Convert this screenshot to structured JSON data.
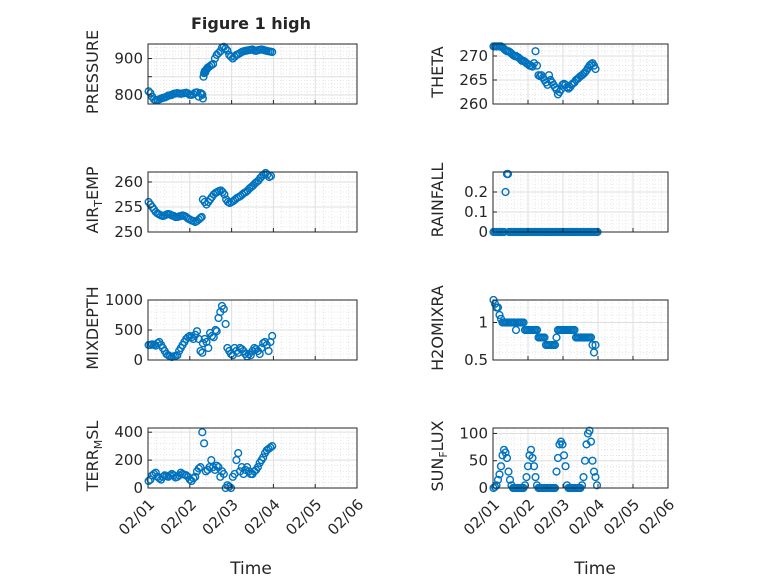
{
  "figure": {
    "title": "Figure 1 high",
    "marker_color": "#0072BD",
    "x_ticks": [
      "02/01",
      "02/02",
      "02/03",
      "02/04",
      "02/05",
      "02/06"
    ],
    "x_label": "Time"
  },
  "chart_data": [
    {
      "type": "scatter",
      "title": "Figure 1 high",
      "ylabel": "PRESSURE",
      "ylim": [
        775,
        940
      ],
      "yticks": [
        800,
        850,
        900
      ],
      "yticklabels": [
        "800",
        "",
        "900"
      ],
      "xlim": [
        0,
        7
      ],
      "grid": true,
      "x": [
        0.02,
        0.08,
        0.14,
        0.2,
        0.26,
        0.32,
        0.38,
        0.44,
        0.5,
        0.56,
        0.62,
        0.68,
        0.74,
        0.8,
        0.86,
        0.92,
        0.98,
        1.04,
        1.1,
        1.16,
        1.22,
        1.28,
        1.34,
        1.4,
        1.46,
        1.52,
        1.58,
        1.64,
        1.7,
        1.76,
        1.8,
        1.82,
        1.84,
        1.86,
        1.88,
        1.9,
        1.92,
        1.94,
        1.96,
        1.98,
        2.0,
        2.06,
        2.12,
        2.18,
        2.24,
        2.3,
        2.36,
        2.42,
        2.48,
        2.54,
        2.6,
        2.66,
        2.72,
        2.78,
        2.84,
        2.9,
        2.96,
        3.02,
        3.08,
        3.14,
        3.2,
        3.26,
        3.32,
        3.38,
        3.44,
        3.5,
        3.56,
        3.62,
        3.68,
        3.74,
        3.8,
        3.86,
        3.92,
        3.98,
        4.04,
        4.1,
        4.16
      ],
      "y": [
        810,
        805,
        795,
        788,
        785,
        786,
        788,
        790,
        792,
        793,
        795,
        798,
        799,
        800,
        803,
        804,
        805,
        804,
        803,
        804,
        805,
        806,
        804,
        800,
        800,
        802,
        806,
        807,
        795,
        805,
        803,
        800,
        790,
        850,
        860,
        865,
        862,
        868,
        870,
        872,
        875,
        878,
        882,
        885,
        900,
        910,
        915,
        920,
        930,
        932,
        928,
        922,
        910,
        905,
        900,
        905,
        910,
        912,
        915,
        918,
        920,
        921,
        922,
        923,
        924,
        925,
        922,
        921,
        923,
        924,
        925,
        924,
        922,
        921,
        920,
        919,
        918
      ]
    },
    {
      "type": "scatter",
      "ylabel": "THETA",
      "ylim": [
        260,
        272.5
      ],
      "yticks": [
        260,
        265,
        270
      ],
      "yticklabels": [
        "260",
        "265",
        "270"
      ],
      "xlim": [
        0,
        7
      ],
      "grid": true,
      "x": [
        0.02,
        0.08,
        0.14,
        0.2,
        0.26,
        0.32,
        0.38,
        0.44,
        0.5,
        0.56,
        0.62,
        0.68,
        0.74,
        0.8,
        0.86,
        0.92,
        0.98,
        1.04,
        1.1,
        1.16,
        1.22,
        1.28,
        1.34,
        1.4,
        1.46,
        1.52,
        1.58,
        1.64,
        1.7,
        1.76,
        1.82,
        1.88,
        1.94,
        2.0,
        2.06,
        2.12,
        2.18,
        2.24,
        2.3,
        2.36,
        2.42,
        2.48,
        2.54,
        2.6,
        2.66,
        2.72,
        2.78,
        2.84,
        2.9,
        2.96,
        3.02,
        3.08,
        3.14,
        3.2,
        3.26,
        3.32,
        3.38,
        3.44,
        3.5,
        3.56,
        3.62,
        3.68,
        3.74,
        3.8,
        3.86,
        3.92,
        3.98,
        4.04,
        4.1
      ],
      "y": [
        272,
        272,
        272,
        272,
        272,
        272,
        271.8,
        271.5,
        271.2,
        271,
        271,
        270.8,
        270.5,
        270.2,
        270,
        270,
        269.8,
        269.6,
        269.3,
        269,
        269,
        268.8,
        268.5,
        268.3,
        268,
        268,
        267.8,
        268.5,
        271,
        268,
        266,
        265.8,
        266,
        265.5,
        265,
        264.5,
        264,
        266,
        265,
        264.5,
        264,
        263.5,
        263,
        262,
        262.5,
        263,
        264,
        264.2,
        264,
        263.5,
        263.2,
        263.5,
        264,
        264.3,
        264.5,
        265,
        265.2,
        265.5,
        265.8,
        266,
        266.3,
        266.6,
        267,
        267.5,
        268,
        268.3,
        268.5,
        268,
        267.3
      ]
    },
    {
      "type": "scatter",
      "ylabel": "AIR_TEMP",
      "ylim": [
        250,
        262
      ],
      "yticks": [
        250,
        255,
        260
      ],
      "yticklabels": [
        "250",
        "255",
        "260"
      ],
      "xlim": [
        0,
        7
      ],
      "grid": true,
      "x": [
        0.02,
        0.08,
        0.14,
        0.2,
        0.26,
        0.32,
        0.38,
        0.44,
        0.5,
        0.56,
        0.62,
        0.68,
        0.74,
        0.8,
        0.86,
        0.92,
        0.98,
        1.04,
        1.1,
        1.16,
        1.22,
        1.28,
        1.34,
        1.4,
        1.46,
        1.52,
        1.58,
        1.64,
        1.7,
        1.76,
        1.8,
        1.84,
        1.9,
        1.96,
        2.02,
        2.08,
        2.14,
        2.2,
        2.26,
        2.32,
        2.38,
        2.44,
        2.5,
        2.56,
        2.62,
        2.68,
        2.74,
        2.8,
        2.86,
        2.92,
        2.98,
        3.04,
        3.1,
        3.16,
        3.22,
        3.28,
        3.34,
        3.4,
        3.46,
        3.52,
        3.58,
        3.64,
        3.7,
        3.76,
        3.82,
        3.88,
        3.94,
        4.0,
        4.06,
        4.12
      ],
      "y": [
        256,
        255.5,
        255,
        254.5,
        254,
        253.7,
        253.5,
        253.3,
        253.2,
        253.3,
        253.5,
        253.6,
        253.5,
        253.3,
        253.2,
        253,
        253,
        253.1,
        253.2,
        253.3,
        253.2,
        253,
        252.7,
        252.5,
        252.3,
        252.2,
        252,
        252.2,
        252.5,
        252.8,
        253,
        256.5,
        256,
        255.5,
        256,
        256.5,
        257,
        257.5,
        257.8,
        258,
        258.2,
        258.3,
        258,
        257.5,
        256.5,
        256,
        255.8,
        256,
        256.2,
        256.5,
        256.8,
        257,
        257.2,
        257.5,
        257.8,
        258,
        258.3,
        258.7,
        259,
        259.3,
        259.7,
        260,
        260.3,
        260.8,
        261.2,
        261.5,
        261.8,
        261.5,
        261,
        261.2
      ]
    },
    {
      "type": "scatter",
      "ylabel": "RAINFALL",
      "ylim": [
        0,
        0.3
      ],
      "yticks": [
        0,
        0.1,
        0.2
      ],
      "yticklabels": [
        "0",
        "0.1",
        "0.2"
      ],
      "xlim": [
        0,
        7
      ],
      "grid": true,
      "x": [
        0.02,
        0.08,
        0.14,
        0.2,
        0.26,
        0.32,
        0.38,
        0.44,
        0.5,
        0.56,
        0.6,
        0.64,
        0.7,
        0.76,
        0.82,
        0.88,
        0.94,
        1.0,
        1.06,
        1.12,
        1.18,
        1.24,
        1.3,
        1.36,
        1.42,
        1.48,
        1.54,
        1.6,
        1.66,
        1.72,
        1.78,
        1.84,
        1.9,
        1.96,
        2.02,
        2.08,
        2.14,
        2.2,
        2.26,
        2.32,
        2.38,
        2.44,
        2.5,
        2.56,
        2.62,
        2.68,
        2.74,
        2.8,
        2.86,
        2.92,
        2.98,
        3.04,
        3.1,
        3.16,
        3.22,
        3.28,
        3.34,
        3.4,
        3.46,
        3.52,
        3.58,
        3.64,
        3.7,
        3.76,
        3.82,
        3.88,
        3.94,
        4.0,
        4.06,
        4.12,
        4.18
      ],
      "y": [
        0,
        0,
        0,
        0,
        0,
        0,
        0,
        0,
        0.2,
        0.29,
        0.29,
        0,
        0,
        0,
        0,
        0,
        0,
        0,
        0,
        0,
        0,
        0,
        0,
        0,
        0,
        0,
        0,
        0,
        0,
        0,
        0,
        0,
        0,
        0,
        0,
        0,
        0,
        0,
        0,
        0,
        0,
        0,
        0,
        0,
        0,
        0,
        0,
        0,
        0,
        0,
        0,
        0,
        0,
        0,
        0,
        0,
        0,
        0,
        0,
        0,
        0,
        0,
        0,
        0,
        0,
        0,
        0,
        0,
        0,
        0,
        0
      ]
    },
    {
      "type": "scatter",
      "ylabel": "MIXDEPTH",
      "ylim": [
        0,
        1000
      ],
      "yticks": [
        0,
        500,
        1000
      ],
      "yticklabels": [
        "0",
        "500",
        "1000"
      ],
      "xlim": [
        0,
        7
      ],
      "grid": true,
      "x": [
        0.02,
        0.08,
        0.14,
        0.2,
        0.26,
        0.32,
        0.38,
        0.44,
        0.5,
        0.56,
        0.62,
        0.68,
        0.74,
        0.8,
        0.86,
        0.92,
        0.98,
        1.04,
        1.1,
        1.16,
        1.22,
        1.28,
        1.34,
        1.4,
        1.46,
        1.52,
        1.58,
        1.64,
        1.7,
        1.76,
        1.82,
        1.84,
        1.9,
        1.96,
        2.02,
        2.08,
        2.14,
        2.2,
        2.26,
        2.3,
        2.36,
        2.42,
        2.48,
        2.54,
        2.6,
        2.66,
        2.72,
        2.78,
        2.84,
        2.9,
        2.96,
        3.02,
        3.08,
        3.14,
        3.2,
        3.26,
        3.32,
        3.38,
        3.44,
        3.5,
        3.56,
        3.62,
        3.68,
        3.74,
        3.8,
        3.86,
        3.92,
        3.98,
        4.04,
        4.1,
        4.16
      ],
      "y": [
        250,
        250,
        260,
        250,
        240,
        280,
        300,
        250,
        200,
        150,
        100,
        80,
        60,
        50,
        60,
        70,
        80,
        150,
        200,
        250,
        300,
        350,
        380,
        400,
        380,
        350,
        420,
        480,
        350,
        150,
        120,
        280,
        350,
        300,
        200,
        450,
        400,
        380,
        500,
        480,
        700,
        800,
        900,
        850,
        600,
        200,
        150,
        100,
        80,
        200,
        150,
        120,
        200,
        180,
        150,
        100,
        60,
        100,
        80,
        150,
        200,
        180,
        150,
        100,
        200,
        280,
        300,
        250,
        150,
        300,
        400
      ]
    },
    {
      "type": "scatter",
      "ylabel": "H2OMIXRA",
      "ylim": [
        0.5,
        1.3
      ],
      "yticks": [
        0.5,
        1
      ],
      "yticklabels": [
        "0.5",
        "1"
      ],
      "xlim": [
        0,
        7
      ],
      "grid": true,
      "x": [
        0.02,
        0.08,
        0.14,
        0.2,
        0.26,
        0.32,
        0.38,
        0.44,
        0.5,
        0.56,
        0.62,
        0.68,
        0.74,
        0.8,
        0.86,
        0.92,
        0.98,
        1.04,
        1.1,
        1.16,
        1.22,
        1.28,
        1.34,
        1.4,
        1.46,
        1.52,
        1.58,
        1.64,
        1.7,
        1.76,
        1.82,
        1.88,
        1.94,
        2.0,
        2.06,
        2.12,
        2.18,
        2.24,
        2.3,
        2.36,
        2.42,
        2.48,
        2.54,
        2.6,
        2.66,
        2.72,
        2.78,
        2.84,
        2.9,
        2.96,
        3.02,
        3.08,
        3.14,
        3.2,
        3.26,
        3.32,
        3.38,
        3.44,
        3.5,
        3.56,
        3.62,
        3.68,
        3.74,
        3.8,
        3.86,
        3.92,
        3.98,
        4.04,
        4.1
      ],
      "y": [
        1.3,
        1.25,
        1.2,
        1.2,
        1.1,
        1.05,
        1.0,
        1.0,
        1.0,
        1.0,
        1.0,
        1.0,
        1.0,
        1.0,
        1.0,
        0.9,
        1.0,
        1.0,
        1.0,
        1.0,
        1.0,
        0.9,
        0.9,
        0.9,
        0.9,
        0.9,
        0.9,
        0.9,
        0.9,
        0.9,
        0.8,
        0.8,
        0.8,
        0.8,
        0.8,
        0.7,
        0.7,
        0.7,
        0.7,
        0.7,
        0.7,
        0.7,
        0.8,
        0.9,
        0.9,
        0.9,
        0.9,
        0.9,
        0.9,
        0.9,
        0.9,
        0.9,
        0.9,
        0.9,
        0.9,
        0.8,
        0.8,
        0.8,
        0.8,
        0.8,
        0.8,
        0.8,
        0.8,
        0.8,
        0.8,
        0.8,
        0.7,
        0.6,
        0.7
      ]
    },
    {
      "type": "scatter",
      "ylabel": "TERR_MSL",
      "ylim": [
        0,
        430
      ],
      "yticks": [
        0,
        200,
        400
      ],
      "yticklabels": [
        "0",
        "200",
        "400"
      ],
      "xlim": [
        0,
        7
      ],
      "grid": true,
      "x": [
        0.02,
        0.08,
        0.14,
        0.2,
        0.26,
        0.32,
        0.38,
        0.44,
        0.5,
        0.56,
        0.62,
        0.68,
        0.74,
        0.8,
        0.86,
        0.92,
        0.98,
        1.04,
        1.1,
        1.16,
        1.22,
        1.28,
        1.34,
        1.4,
        1.46,
        1.52,
        1.58,
        1.64,
        1.7,
        1.76,
        1.82,
        1.88,
        1.94,
        2.0,
        2.06,
        2.12,
        2.18,
        2.24,
        2.3,
        2.36,
        2.42,
        2.48,
        2.54,
        2.6,
        2.66,
        2.72,
        2.78,
        2.84,
        2.9,
        2.96,
        3.02,
        3.08,
        3.14,
        3.2,
        3.26,
        3.32,
        3.38,
        3.44,
        3.5,
        3.56,
        3.62,
        3.68,
        3.74,
        3.8,
        3.86,
        3.92,
        3.98,
        4.04,
        4.1,
        4.16
      ],
      "y": [
        50,
        60,
        90,
        100,
        110,
        80,
        70,
        60,
        80,
        90,
        85,
        80,
        90,
        100,
        90,
        75,
        80,
        90,
        110,
        100,
        95,
        90,
        80,
        60,
        50,
        70,
        80,
        120,
        140,
        150,
        400,
        320,
        120,
        130,
        150,
        200,
        150,
        130,
        160,
        150,
        80,
        120,
        100,
        0,
        20,
        10,
        0,
        80,
        100,
        200,
        250,
        120,
        150,
        100,
        130,
        150,
        120,
        100,
        100,
        120,
        130,
        150,
        180,
        200,
        220,
        250,
        270,
        280,
        290,
        300
      ]
    },
    {
      "type": "scatter",
      "ylabel": "SUN_FLUX",
      "ylim": [
        0,
        110
      ],
      "yticks": [
        0,
        50,
        100
      ],
      "yticklabels": [
        "0",
        "50",
        "100"
      ],
      "xlim": [
        0,
        7
      ],
      "grid": true,
      "x": [
        0.02,
        0.08,
        0.14,
        0.2,
        0.26,
        0.32,
        0.38,
        0.44,
        0.5,
        0.56,
        0.62,
        0.68,
        0.74,
        0.8,
        0.86,
        0.92,
        0.98,
        1.04,
        1.1,
        1.16,
        1.22,
        1.28,
        1.34,
        1.4,
        1.46,
        1.52,
        1.58,
        1.64,
        1.7,
        1.76,
        1.82,
        1.88,
        1.94,
        2.0,
        2.06,
        2.12,
        2.18,
        2.24,
        2.3,
        2.36,
        2.42,
        2.48,
        2.54,
        2.6,
        2.66,
        2.72,
        2.78,
        2.84,
        2.9,
        2.96,
        3.02,
        3.08,
        3.14,
        3.2,
        3.26,
        3.32,
        3.38,
        3.44,
        3.5,
        3.56,
        3.62,
        3.68,
        3.74,
        3.8,
        3.86,
        3.92,
        3.98,
        4.04,
        4.1,
        4.16
      ],
      "y": [
        0,
        2,
        5,
        15,
        25,
        40,
        60,
        70,
        65,
        55,
        30,
        15,
        5,
        0,
        0,
        0,
        0,
        0,
        0,
        0,
        0,
        5,
        20,
        40,
        60,
        70,
        55,
        40,
        20,
        5,
        0,
        0,
        0,
        0,
        0,
        0,
        0,
        0,
        0,
        0,
        0,
        0,
        30,
        55,
        80,
        85,
        80,
        60,
        40,
        5,
        0,
        0,
        0,
        0,
        0,
        0,
        0,
        0,
        0,
        5,
        20,
        50,
        80,
        100,
        105,
        85,
        50,
        30,
        20,
        5
      ]
    }
  ]
}
